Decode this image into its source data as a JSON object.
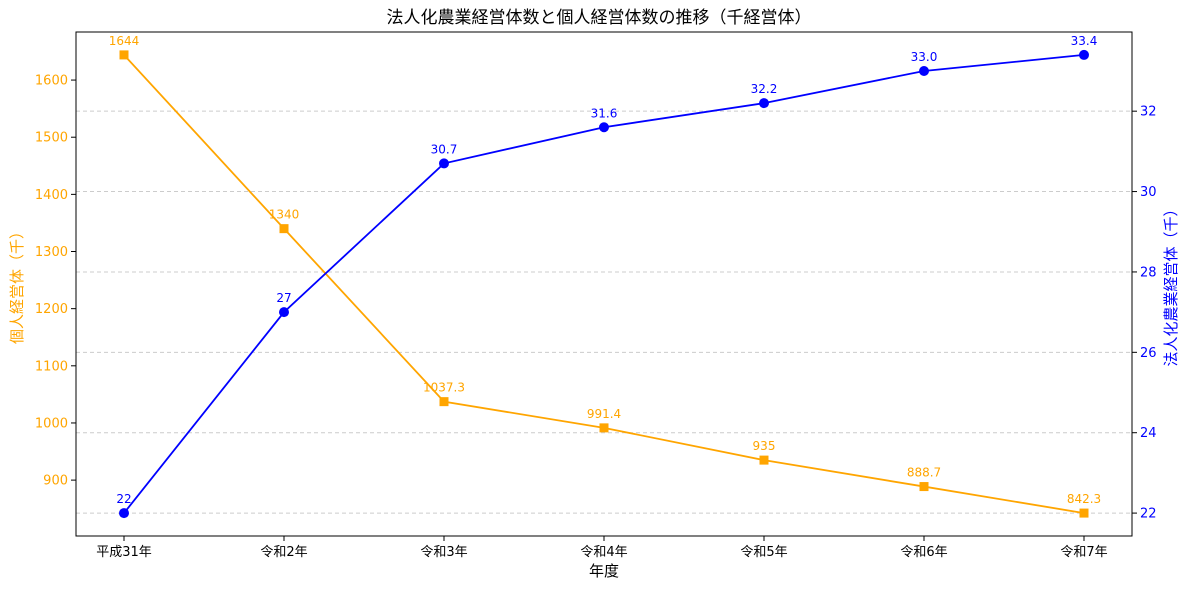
{
  "chart_data": {
    "type": "line",
    "title": "法人化農業経営体数と個人経営体数の推移（千経営体）",
    "xlabel": "年度",
    "categories": [
      "平成31年",
      "令和2年",
      "令和3年",
      "令和4年",
      "令和5年",
      "令和6年",
      "令和7年"
    ],
    "series": [
      {
        "name": "個人経営体",
        "axis": "left",
        "marker": "square",
        "color": "#FFA500",
        "values": [
          1644,
          1340,
          1037.3,
          991.4,
          935,
          888.7,
          842.3
        ],
        "labels": [
          "1644",
          "1340",
          "1037.3",
          "991.4",
          "935",
          "888.7",
          "842.3"
        ]
      },
      {
        "name": "法人化農業経営体",
        "axis": "right",
        "marker": "circle",
        "color": "#0000FF",
        "values": [
          22,
          27,
          30.7,
          31.6,
          32.2,
          33.0,
          33.4
        ],
        "labels": [
          "22",
          "27",
          "30.7",
          "31.6",
          "32.2",
          "33.0",
          "33.4"
        ]
      }
    ],
    "y_left": {
      "label": "個人経営体（千）",
      "color": "#FFA500",
      "range": [
        802.2,
        1684.1
      ],
      "ticks": [
        900,
        1000,
        1100,
        1200,
        1300,
        1400,
        1500,
        1600
      ],
      "tick_labels": [
        "900",
        "1000",
        "1100",
        "1200",
        "1300",
        "1400",
        "1500",
        "1600"
      ]
    },
    "y_right": {
      "label": "法人化農業経営体（千）",
      "color": "#0000FF",
      "range": [
        21.43,
        33.97
      ],
      "ticks": [
        22,
        24,
        26,
        28,
        30,
        32
      ],
      "tick_labels": [
        "22",
        "24",
        "26",
        "28",
        "30",
        "32"
      ]
    },
    "grid": "horizontal-dashed"
  }
}
